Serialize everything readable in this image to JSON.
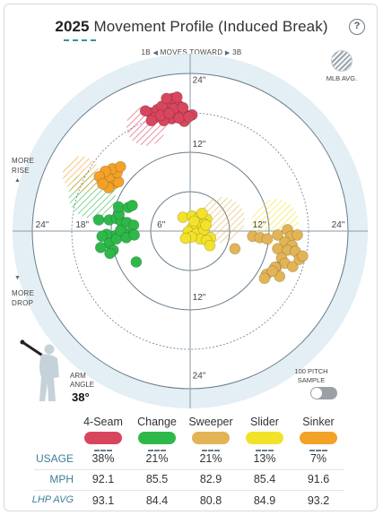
{
  "header": {
    "year": "2025",
    "title": "Movement Profile (Induced Break)",
    "help_icon": "?"
  },
  "direction": {
    "left": "1B",
    "center": "MOVES TOWARD",
    "right": "3B"
  },
  "mlb_avg_label": "MLB AVG.",
  "more_rise": [
    "MORE",
    "RISE"
  ],
  "more_drop": [
    "MORE",
    "DROP"
  ],
  "arm": {
    "label_line1": "ARM",
    "label_line2": "ANGLE",
    "value": "38°"
  },
  "sample_toggle": {
    "line1": "100 PITCH",
    "line2": "SAMPLE",
    "on": false
  },
  "colors": {
    "4-Seam": "#d8465e",
    "Change": "#2fb84a",
    "Sweeper": "#e2b455",
    "Slider": "#f2e22a",
    "Sinker": "#f3a127",
    "field_bg": "#e3eff4",
    "ring": "#6a7c8a"
  },
  "chart_data": {
    "type": "scatter",
    "title": "2025 Movement Profile (Induced Break)",
    "xlabel": "",
    "ylabel": "",
    "xlim": [
      -27,
      27
    ],
    "ylim": [
      -27,
      27
    ],
    "grid": true,
    "rings": [
      6,
      12,
      18,
      24
    ],
    "tick_labels": {
      "x_left": [
        "24\"",
        "18\"",
        "6\""
      ],
      "x_right": [
        "12\"",
        "24\""
      ],
      "y_top": [
        "24\"",
        "12\""
      ],
      "y_bottom": [
        "12\"",
        "24\""
      ]
    },
    "mlb_averages": [
      {
        "pitch": "4-Seam",
        "x": -6.7,
        "y": 16.0,
        "r": 3.0
      },
      {
        "pitch": "Change",
        "x": -14.9,
        "y": 5.5,
        "r": 3.6
      },
      {
        "pitch": "Sweeper",
        "x": 4.8,
        "y": 1.7,
        "r": 3.5
      },
      {
        "pitch": "Slider",
        "x": 12.9,
        "y": 1.3,
        "r": 3.6
      },
      {
        "pitch": "Sinker",
        "x": -16.6,
        "y": 8.6,
        "r": 2.8
      }
    ],
    "series": [
      {
        "name": "4-Seam",
        "points": [
          [
            -6,
            18
          ],
          [
            -5,
            18.5
          ],
          [
            -4,
            18.2
          ],
          [
            -3,
            18.4
          ],
          [
            -2,
            17.9
          ],
          [
            -1,
            18
          ],
          [
            -3.5,
            19.3
          ],
          [
            -2.7,
            20.2
          ],
          [
            -4.3,
            19
          ],
          [
            -1.7,
            19.1
          ],
          [
            0.3,
            17.7
          ],
          [
            -5.3,
            17.3
          ],
          [
            -2.8,
            17.1
          ],
          [
            -0.9,
            16.7
          ],
          [
            -4,
            16.8
          ],
          [
            -6.8,
            18.3
          ],
          [
            -3.6,
            20.2
          ],
          [
            -2,
            20.4
          ],
          [
            -1.2,
            17.6
          ],
          [
            -1.7,
            17.2
          ],
          [
            -4.5,
            17.6
          ],
          [
            -2.5,
            18.6
          ],
          [
            -1.1,
            18.8
          ],
          [
            -3.2,
            17.9
          ],
          [
            -5.9,
            16.8
          ],
          [
            -0.2,
            17.4
          ]
        ]
      },
      {
        "name": "Change",
        "points": [
          [
            -13.9,
            1.7
          ],
          [
            -12.3,
            1.7
          ],
          [
            -11.2,
            1.9
          ],
          [
            -10.5,
            1.5
          ],
          [
            -9.6,
            1.3
          ],
          [
            -8.6,
            0.9
          ],
          [
            -9.2,
            -0.4
          ],
          [
            -10.1,
            -0.3
          ],
          [
            -11.4,
            -0.7
          ],
          [
            -12.7,
            -0.5
          ],
          [
            -13.4,
            -0.8
          ],
          [
            -12.3,
            -1.9
          ],
          [
            -11.7,
            -2.9
          ],
          [
            -12.2,
            -3.4
          ],
          [
            -13.6,
            -2.5
          ],
          [
            -11.2,
            -1.2
          ],
          [
            -10.6,
            0.1
          ],
          [
            -9.7,
            -1
          ],
          [
            -8.5,
            -0.6
          ],
          [
            -10.8,
            2.6
          ],
          [
            -10.9,
            3.7
          ],
          [
            -9.4,
            3.6
          ],
          [
            -8.8,
            3.9
          ],
          [
            -8.2,
            -4.7
          ]
        ]
      },
      {
        "name": "Sweeper",
        "points": [
          [
            9.5,
            -0.8
          ],
          [
            10.6,
            -1
          ],
          [
            11.7,
            -1.2
          ],
          [
            13.3,
            -0.6
          ],
          [
            14.8,
            0.2
          ],
          [
            15.3,
            -0.8
          ],
          [
            16.3,
            -0.6
          ],
          [
            14.4,
            -1.7
          ],
          [
            15.5,
            -2.2
          ],
          [
            13.3,
            -2.7
          ],
          [
            14.8,
            -2.9
          ],
          [
            16,
            -3.1
          ],
          [
            13.9,
            -4.1
          ],
          [
            14.4,
            -4.9
          ],
          [
            13.1,
            -5.5
          ],
          [
            15.6,
            -5.4
          ],
          [
            16.6,
            -4.3
          ],
          [
            13.6,
            -6.9
          ],
          [
            12.9,
            -5.5
          ],
          [
            11.6,
            -6.6
          ],
          [
            11.3,
            -7.2
          ],
          [
            12.5,
            -6.1
          ],
          [
            17.1,
            -3.8
          ],
          [
            6.8,
            -2.7
          ]
        ]
      },
      {
        "name": "Slider",
        "points": [
          [
            -1.1,
            2.1
          ],
          [
            0.3,
            2.3
          ],
          [
            1.4,
            2.1
          ],
          [
            2.5,
            1.8
          ],
          [
            2.1,
            1.1
          ],
          [
            1.3,
            0.6
          ],
          [
            0.3,
            0.5
          ],
          [
            -0.3,
            -0.1
          ],
          [
            0.9,
            -0.4
          ],
          [
            2.1,
            0.2
          ],
          [
            1.5,
            -1.2
          ],
          [
            0.2,
            -0.9
          ],
          [
            -0.7,
            -1.1
          ],
          [
            3.1,
            -1
          ],
          [
            2.5,
            -1.4
          ],
          [
            3,
            -2.2
          ],
          [
            1.8,
            2.7
          ],
          [
            2.4,
            0.9
          ],
          [
            0.6,
            1.5
          ]
        ]
      },
      {
        "name": "Sinker",
        "points": [
          [
            -11.6,
            7.2
          ],
          [
            -10.9,
            7.5
          ],
          [
            -12.2,
            8.3
          ],
          [
            -11.1,
            8.9
          ],
          [
            -11.8,
            9.5
          ],
          [
            -10.6,
            9.8
          ],
          [
            -12.9,
            9.1
          ],
          [
            -13.8,
            8.3
          ],
          [
            -12.4,
            6.6
          ],
          [
            -13.3,
            7.2
          ]
        ]
      }
    ]
  },
  "table": {
    "pitches": [
      "4-Seam",
      "Change",
      "Sweeper",
      "Slider",
      "Sinker"
    ],
    "rows": [
      {
        "label": "USAGE",
        "values": [
          "38%",
          "21%",
          "21%",
          "13%",
          "7%"
        ]
      },
      {
        "label": "MPH",
        "values": [
          "92.1",
          "85.5",
          "82.9",
          "85.4",
          "91.6"
        ]
      },
      {
        "label": "LHP AVG",
        "values": [
          "93.1",
          "84.4",
          "80.8",
          "84.9",
          "93.2"
        ]
      }
    ]
  }
}
